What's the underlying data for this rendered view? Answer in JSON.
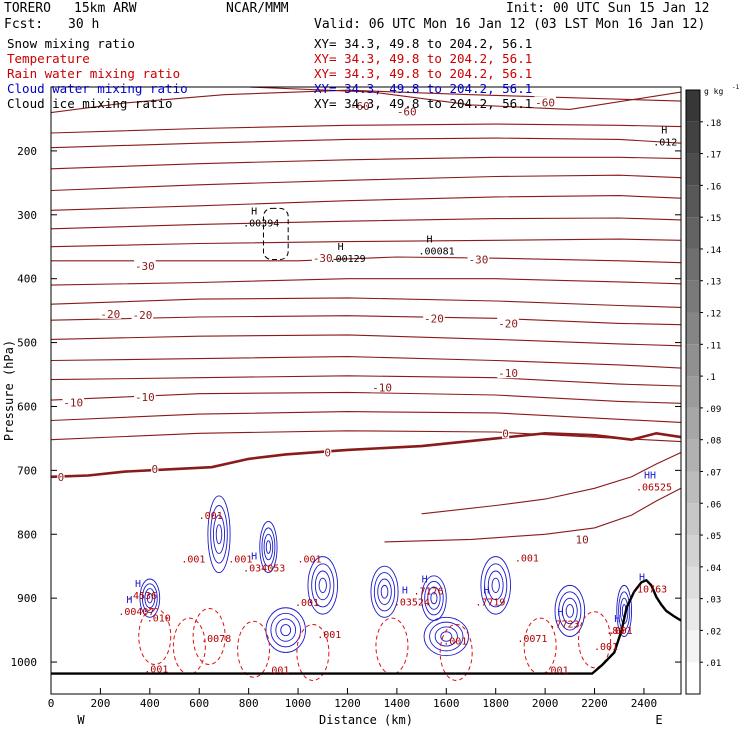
{
  "header": {
    "model": "TORERO",
    "run": "15km ARW",
    "org": "NCAR/MMM",
    "init": "Init: 00 UTC Sun 15 Jan 12",
    "fcst_label": "Fcst:",
    "fcst_value": "30 h",
    "valid": "Valid: 06 UTC Mon 16 Jan 12 (03 LST Mon 16 Jan 12)"
  },
  "fields": [
    {
      "name": "Snow mixing ratio",
      "xy": "XY=  34.3, 49.8 to 204.2, 56.1",
      "color": "#000000"
    },
    {
      "name": "Temperature",
      "xy": "XY=  34.3, 49.8 to 204.2, 56.1",
      "color": "#cc0000"
    },
    {
      "name": "Rain water mixing ratio",
      "xy": "XY=  34.3, 49.8 to 204.2, 56.1",
      "color": "#cc0000"
    },
    {
      "name": "Cloud water mixing ratio",
      "xy": "XY=  34.3, 49.8 to 204.2, 56.1",
      "color": "#0000cc"
    },
    {
      "name": "Cloud ice mixing ratio",
      "xy": "XY=  34.3, 49.8 to 204.2, 56.1",
      "color": "#000000"
    }
  ],
  "chart_data": {
    "type": "contour",
    "xlabel": "Distance (km)",
    "ylabel": "Pressure (hPa)",
    "xlim": [
      0,
      2550
    ],
    "ylim": [
      1050,
      100
    ],
    "xticks": [
      0,
      200,
      400,
      600,
      800,
      1000,
      1200,
      1400,
      1600,
      1800,
      2000,
      2200,
      2400
    ],
    "yticks": [
      200,
      300,
      400,
      500,
      600,
      700,
      800,
      900,
      1000
    ],
    "x_end_left": "W",
    "x_end_right": "E",
    "terrain_line": [
      [
        0,
        1018
      ],
      [
        2190,
        1018
      ],
      [
        2230,
        1005
      ],
      [
        2280,
        985
      ],
      [
        2310,
        950
      ],
      [
        2330,
        915
      ],
      [
        2360,
        890
      ],
      [
        2390,
        875
      ],
      [
        2410,
        872
      ],
      [
        2430,
        880
      ],
      [
        2450,
        898
      ],
      [
        2470,
        910
      ],
      [
        2490,
        920
      ],
      [
        2520,
        928
      ],
      [
        2550,
        935
      ]
    ],
    "temperature_contours": [
      {
        "label": "-60",
        "points": [
          [
            0,
            140
          ],
          [
            300,
            125
          ],
          [
            700,
            112
          ],
          [
            1200,
            105
          ],
          [
            1700,
            112
          ],
          [
            2550,
            122
          ]
        ]
      },
      {
        "label": "-60",
        "points": [
          [
            800,
            100
          ],
          [
            1300,
            108
          ],
          [
            1700,
            128
          ],
          [
            2100,
            135
          ],
          [
            2550,
            108
          ]
        ]
      },
      {
        "label": "-60",
        "points": [
          [
            0,
            172
          ],
          [
            600,
            165
          ],
          [
            1200,
            160
          ],
          [
            1800,
            158
          ],
          [
            2300,
            160
          ],
          [
            2550,
            162
          ]
        ]
      },
      {
        "label": "",
        "points": [
          [
            0,
            195
          ],
          [
            600,
            188
          ],
          [
            1200,
            182
          ],
          [
            1800,
            180
          ],
          [
            2300,
            182
          ],
          [
            2550,
            188
          ]
        ]
      },
      {
        "label": "",
        "points": [
          [
            0,
            228
          ],
          [
            600,
            220
          ],
          [
            1200,
            214
          ],
          [
            1800,
            210
          ],
          [
            2300,
            210
          ],
          [
            2550,
            212
          ]
        ]
      },
      {
        "label": "",
        "points": [
          [
            0,
            262
          ],
          [
            600,
            253
          ],
          [
            1200,
            246
          ],
          [
            1800,
            240
          ],
          [
            2300,
            238
          ],
          [
            2550,
            242
          ]
        ]
      },
      {
        "label": "",
        "points": [
          [
            0,
            293
          ],
          [
            600,
            286
          ],
          [
            1200,
            278
          ],
          [
            1800,
            272
          ],
          [
            2300,
            270
          ],
          [
            2550,
            274
          ]
        ]
      },
      {
        "label": "",
        "points": [
          [
            0,
            322
          ],
          [
            600,
            315
          ],
          [
            1200,
            310
          ],
          [
            1800,
            306
          ],
          [
            2300,
            305
          ],
          [
            2550,
            308
          ]
        ]
      },
      {
        "label": "",
        "points": [
          [
            0,
            350
          ],
          [
            600,
            345
          ],
          [
            1200,
            342
          ],
          [
            1800,
            340
          ],
          [
            2300,
            338
          ],
          [
            2550,
            340
          ]
        ]
      },
      {
        "label": "-30",
        "points": [
          [
            0,
            372
          ],
          [
            600,
            372
          ],
          [
            1000,
            372
          ],
          [
            1400,
            366
          ],
          [
            1800,
            368
          ],
          [
            2300,
            372
          ],
          [
            2550,
            375
          ]
        ]
      },
      {
        "label": "",
        "points": [
          [
            0,
            410
          ],
          [
            600,
            406
          ],
          [
            1200,
            400
          ],
          [
            1800,
            400
          ],
          [
            2300,
            405
          ],
          [
            2550,
            408
          ]
        ]
      },
      {
        "label": "-20",
        "points": [
          [
            0,
            440
          ],
          [
            600,
            432
          ],
          [
            1200,
            430
          ],
          [
            1800,
            435
          ],
          [
            2300,
            442
          ],
          [
            2550,
            445
          ]
        ]
      },
      {
        "label": "-20",
        "points": [
          [
            0,
            465
          ],
          [
            600,
            460
          ],
          [
            1200,
            458
          ],
          [
            1800,
            462
          ],
          [
            2300,
            470
          ],
          [
            2550,
            472
          ]
        ]
      },
      {
        "label": "",
        "points": [
          [
            0,
            495
          ],
          [
            600,
            490
          ],
          [
            1200,
            488
          ],
          [
            1800,
            495
          ],
          [
            2300,
            502
          ],
          [
            2550,
            505
          ]
        ]
      },
      {
        "label": "",
        "points": [
          [
            0,
            528
          ],
          [
            600,
            525
          ],
          [
            1200,
            522
          ],
          [
            1800,
            528
          ],
          [
            2300,
            535
          ],
          [
            2550,
            540
          ]
        ]
      },
      {
        "label": "-10",
        "points": [
          [
            0,
            558
          ],
          [
            600,
            555
          ],
          [
            1200,
            552
          ],
          [
            1800,
            555
          ],
          [
            2300,
            565
          ],
          [
            2550,
            568
          ]
        ]
      },
      {
        "label": "-10",
        "points": [
          [
            0,
            590
          ],
          [
            600,
            580
          ],
          [
            1200,
            578
          ],
          [
            1800,
            582
          ],
          [
            2300,
            592
          ],
          [
            2550,
            595
          ]
        ]
      },
      {
        "label": "",
        "points": [
          [
            0,
            622
          ],
          [
            600,
            612
          ],
          [
            1200,
            608
          ],
          [
            1800,
            610
          ],
          [
            2300,
            620
          ],
          [
            2550,
            625
          ]
        ]
      },
      {
        "label": "",
        "points": [
          [
            0,
            652
          ],
          [
            600,
            642
          ],
          [
            1200,
            638
          ],
          [
            1800,
            640
          ],
          [
            2300,
            650
          ],
          [
            2550,
            655
          ]
        ]
      },
      {
        "label": "10",
        "points": [
          [
            1350,
            812
          ],
          [
            1700,
            808
          ],
          [
            2000,
            800
          ],
          [
            2200,
            790
          ],
          [
            2350,
            770
          ],
          [
            2450,
            748
          ],
          [
            2550,
            728
          ]
        ]
      },
      {
        "label": "",
        "points": [
          [
            1500,
            768
          ],
          [
            1800,
            755
          ],
          [
            2000,
            745
          ],
          [
            2200,
            728
          ],
          [
            2350,
            710
          ],
          [
            2450,
            690
          ],
          [
            2550,
            672
          ]
        ]
      }
    ],
    "zero_isotherm": [
      [
        0,
        710
      ],
      [
        150,
        708
      ],
      [
        300,
        702
      ],
      [
        500,
        698
      ],
      [
        650,
        695
      ],
      [
        800,
        682
      ],
      [
        950,
        675
      ],
      [
        1200,
        668
      ],
      [
        1500,
        662
      ],
      [
        1800,
        650
      ],
      [
        2000,
        642
      ],
      [
        2200,
        645
      ],
      [
        2350,
        652
      ],
      [
        2450,
        642
      ],
      [
        2550,
        648
      ]
    ],
    "temperature_labels": [
      {
        "text": "-60",
        "x": 1250,
        "y": 130
      },
      {
        "text": "-60",
        "x": 1440,
        "y": 138
      },
      {
        "text": "-60",
        "x": 2000,
        "y": 124
      },
      {
        "text": "-30",
        "x": 380,
        "y": 380
      },
      {
        "text": "-30",
        "x": 1100,
        "y": 368
      },
      {
        "text": "-30",
        "x": 1730,
        "y": 370
      },
      {
        "text": "-20",
        "x": 240,
        "y": 455
      },
      {
        "text": "-20",
        "x": 370,
        "y": 457
      },
      {
        "text": "-20",
        "x": 1550,
        "y": 462
      },
      {
        "text": "-20",
        "x": 1850,
        "y": 470
      },
      {
        "text": "-10",
        "x": 1340,
        "y": 570
      },
      {
        "text": "-10",
        "x": 1850,
        "y": 548
      },
      {
        "text": "-10",
        "x": 380,
        "y": 585
      },
      {
        "text": "-10",
        "x": 90,
        "y": 594
      },
      {
        "text": "0",
        "x": 40,
        "y": 710
      },
      {
        "text": "0",
        "x": 420,
        "y": 698
      },
      {
        "text": "0",
        "x": 1120,
        "y": 672
      },
      {
        "text": "0",
        "x": 1840,
        "y": 642
      },
      {
        "text": "10",
        "x": 2150,
        "y": 808
      }
    ],
    "ice_hilos": [
      {
        "text": "H",
        "value": ".00394",
        "x": 810,
        "y": 312
      },
      {
        "text": "H",
        "value": ".00129",
        "x": 1160,
        "y": 368
      },
      {
        "text": "H",
        "value": ".00081",
        "x": 1520,
        "y": 356
      },
      {
        "text": "H",
        "value": ".012",
        "x": 2470,
        "y": 185
      }
    ],
    "cloud_labels": [
      {
        "text": "H",
        "value": ".4536",
        "x": 340,
        "y": 895
      },
      {
        "text": "H",
        "value": ".00407",
        "x": 305,
        "y": 920
      },
      {
        "text": "H",
        "value": ".034053",
        "x": 810,
        "y": 852
      },
      {
        "text": "H",
        "value": ".7176",
        "x": 1500,
        "y": 888
      },
      {
        "text": "H",
        "value": ".7719",
        "x": 1750,
        "y": 905
      },
      {
        "text": "H",
        "value": ".03524",
        "x": 1420,
        "y": 905
      },
      {
        "text": "HH",
        "value": ".06525",
        "x": 2400,
        "y": 725
      },
      {
        "text": "H",
        "value": ".10763",
        "x": 2380,
        "y": 885
      },
      {
        "text": "H",
        "value": ".7723",
        "x": 2050,
        "y": 940
      },
      {
        "text": "H",
        "value": ".86",
        "x": 2280,
        "y": 950
      },
      {
        "text": "",
        "value": ".001",
        "x": 560,
        "y": 838
      },
      {
        "text": "",
        "value": ".001",
        "x": 750,
        "y": 838
      },
      {
        "text": "",
        "value": ".001",
        "x": 1030,
        "y": 838
      },
      {
        "text": "",
        "value": ".001",
        "x": 1910,
        "y": 836
      },
      {
        "text": "",
        "value": ".001",
        "x": 1020,
        "y": 906
      },
      {
        "text": "",
        "value": ".001",
        "x": 1110,
        "y": 956
      },
      {
        "text": "",
        "value": ".001",
        "x": 1620,
        "y": 966
      },
      {
        "text": "",
        "value": ".001",
        "x": 2290,
        "y": 950
      },
      {
        "text": "",
        "value": ".001",
        "x": 410,
        "y": 1010
      },
      {
        "text": "",
        "value": ".001",
        "x": 900,
        "y": 1012
      },
      {
        "text": "",
        "value": ".001",
        "x": 2030,
        "y": 1012
      },
      {
        "text": "",
        "value": ".001",
        "x": 630,
        "y": 770
      },
      {
        "text": "",
        "value": ".0078",
        "x": 640,
        "y": 962
      },
      {
        "text": "",
        "value": ".0071",
        "x": 1920,
        "y": 962
      },
      {
        "text": "",
        "value": ".010",
        "x": 420,
        "y": 930
      },
      {
        "text": "",
        "value": ".001",
        "x": 2230,
        "y": 975
      }
    ],
    "colorbar": {
      "unit": "g kg",
      "unit_exp": "-1",
      "ticks": [
        ".01",
        ".02",
        ".03",
        ".04",
        ".05",
        ".06",
        ".07",
        ".08",
        ".09",
        ".1",
        ".11",
        ".12",
        ".13",
        ".14",
        ".15",
        ".16",
        ".17",
        ".18"
      ]
    }
  }
}
